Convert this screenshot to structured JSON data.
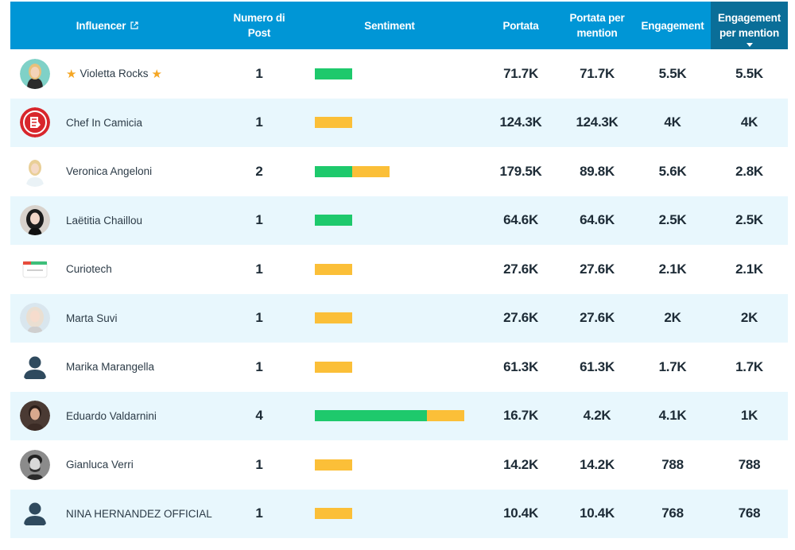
{
  "header": {
    "influencer": "Influencer",
    "numero_line1": "Numero di",
    "numero_line2": "Post",
    "sentiment": "Sentiment",
    "portata": "Portata",
    "portata_pm_line1": "Portata per",
    "portata_pm_line2": "mention",
    "engagement": "Engagement",
    "engagement_pm_line1": "Engagement",
    "engagement_pm_line2": "per mention"
  },
  "colors": {
    "header_bg": "#0096d6",
    "header_sorted_bg": "#0a6e98",
    "row_alt_bg": "#e8f7fd",
    "positive": "#1ec96c",
    "neutral": "#fbbf38",
    "star": "#f5a623"
  },
  "rows": [
    {
      "name": "Violetta Rocks",
      "starred": true,
      "avatar": "photo-blonde-woman",
      "posts": "1",
      "sentiment": {
        "positive": 1,
        "neutral": 0
      },
      "portata": "71.7K",
      "portata_pm": "71.7K",
      "engagement": "5.5K",
      "engagement_pm": "5.5K"
    },
    {
      "name": "Chef In Camicia",
      "starred": false,
      "avatar": "red-logo-icon",
      "posts": "1",
      "sentiment": {
        "positive": 0,
        "neutral": 1
      },
      "portata": "124.3K",
      "portata_pm": "124.3K",
      "engagement": "4K",
      "engagement_pm": "4K"
    },
    {
      "name": "Veronica Angeloni",
      "starred": false,
      "avatar": "photo-blonde-woman-2",
      "posts": "2",
      "sentiment": {
        "positive": 1,
        "neutral": 1
      },
      "portata": "179.5K",
      "portata_pm": "89.8K",
      "engagement": "5.6K",
      "engagement_pm": "2.8K"
    },
    {
      "name": "Laëtitia Chaillou",
      "starred": false,
      "avatar": "photo-dark-hair-woman",
      "posts": "1",
      "sentiment": {
        "positive": 1,
        "neutral": 0
      },
      "portata": "64.6K",
      "portata_pm": "64.6K",
      "engagement": "2.5K",
      "engagement_pm": "2.5K"
    },
    {
      "name": "Curiotech",
      "starred": false,
      "avatar": "curiotech-logo",
      "posts": "1",
      "sentiment": {
        "positive": 0,
        "neutral": 1
      },
      "portata": "27.6K",
      "portata_pm": "27.6K",
      "engagement": "2.1K",
      "engagement_pm": "2.1K"
    },
    {
      "name": "Marta Suvi",
      "starred": false,
      "avatar": "photo-blonde-woman-3",
      "posts": "1",
      "sentiment": {
        "positive": 0,
        "neutral": 1
      },
      "portata": "27.6K",
      "portata_pm": "27.6K",
      "engagement": "2K",
      "engagement_pm": "2K"
    },
    {
      "name": "Marika Marangella",
      "starred": false,
      "avatar": "default-user-icon",
      "posts": "1",
      "sentiment": {
        "positive": 0,
        "neutral": 1
      },
      "portata": "61.3K",
      "portata_pm": "61.3K",
      "engagement": "1.7K",
      "engagement_pm": "1.7K"
    },
    {
      "name": "Eduardo Valdarnini",
      "starred": false,
      "avatar": "photo-man",
      "posts": "4",
      "sentiment": {
        "positive": 3,
        "neutral": 1
      },
      "portata": "16.7K",
      "portata_pm": "4.2K",
      "engagement": "4.1K",
      "engagement_pm": "1K"
    },
    {
      "name": "Gianluca Verri",
      "starred": false,
      "avatar": "photo-man-bw",
      "posts": "1",
      "sentiment": {
        "positive": 0,
        "neutral": 1
      },
      "portata": "14.2K",
      "portata_pm": "14.2K",
      "engagement": "788",
      "engagement_pm": "788"
    },
    {
      "name": "NINA HERNANDEZ OFFICIAL",
      "starred": false,
      "avatar": "default-user-icon",
      "posts": "1",
      "sentiment": {
        "positive": 0,
        "neutral": 1
      },
      "portata": "10.4K",
      "portata_pm": "10.4K",
      "engagement": "768",
      "engagement_pm": "768"
    }
  ]
}
